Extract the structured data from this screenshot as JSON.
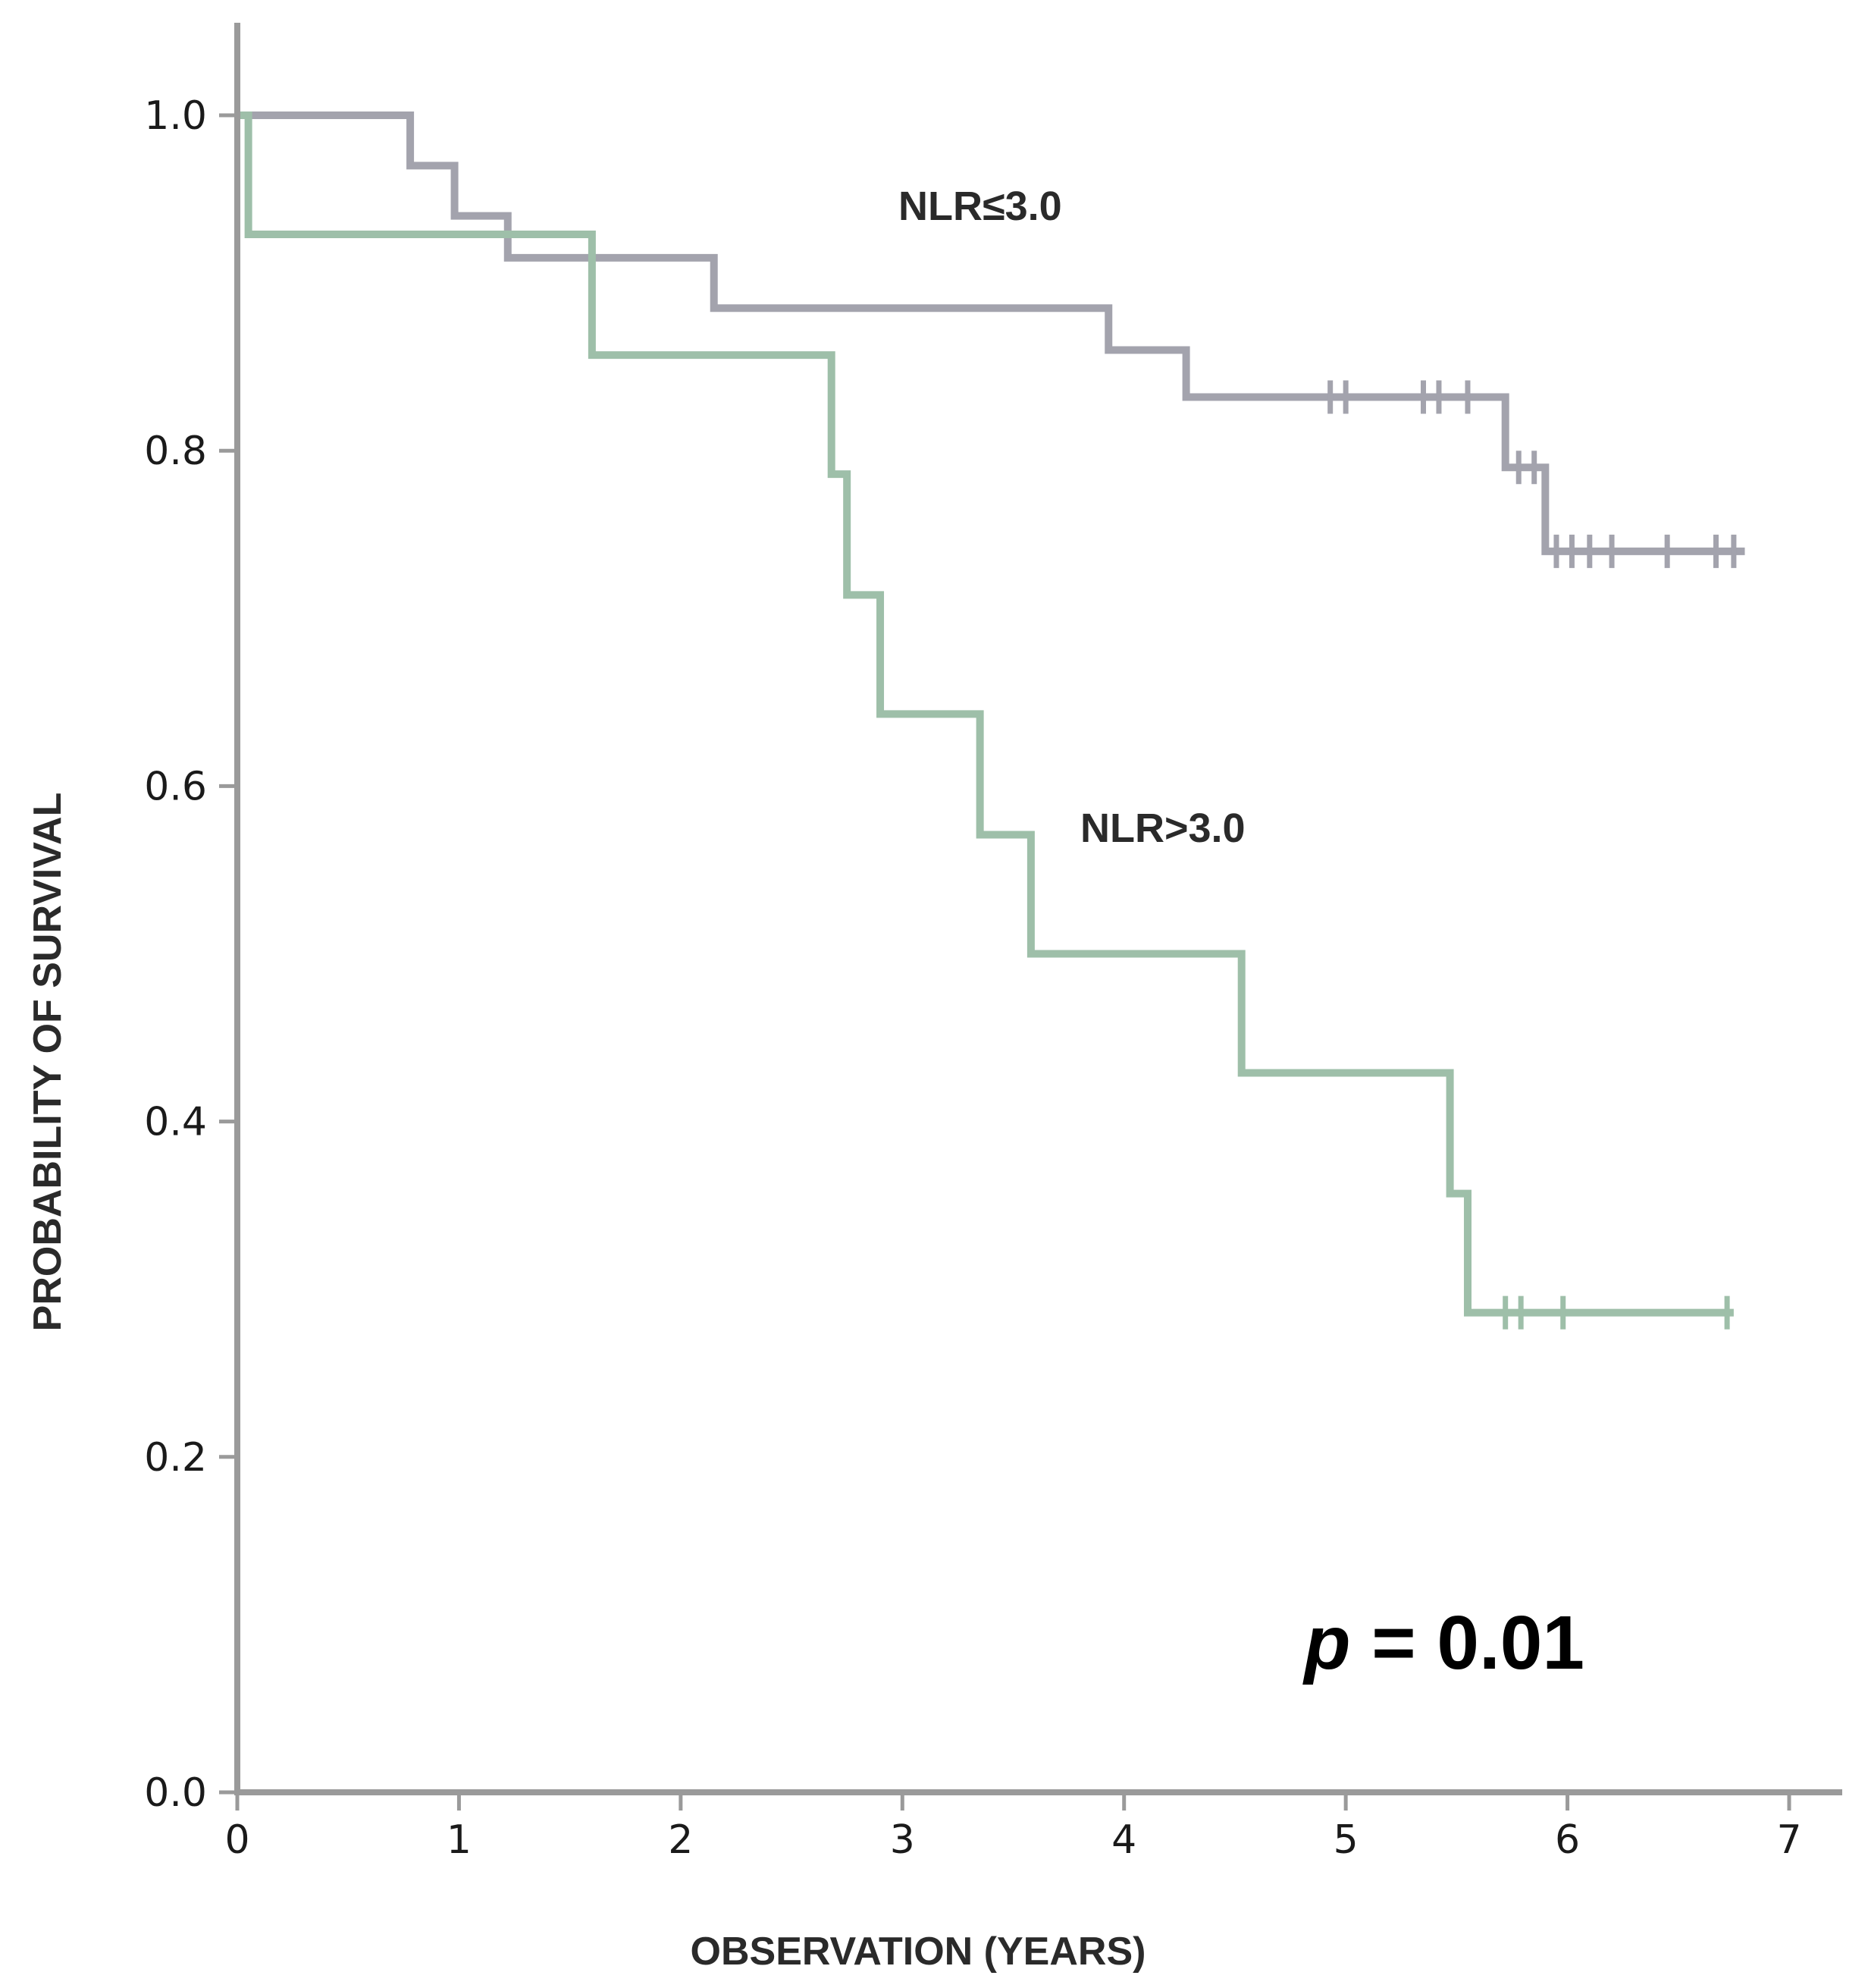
{
  "chart_data": {
    "type": "line",
    "subtype": "kaplan-meier step",
    "title": "",
    "xlabel": "OBSERVATION (YEARS)",
    "ylabel": "PROBABILITY OF SURVIVAL",
    "xlim": [
      0,
      7
    ],
    "ylim": [
      0,
      1.0
    ],
    "x_ticks": [
      "0",
      "1",
      "2",
      "3",
      "4",
      "5",
      "6",
      "7"
    ],
    "y_ticks": [
      "0.0",
      "0.2",
      "0.4",
      "0.6",
      "0.8",
      "1.0"
    ],
    "grid": false,
    "annotation": {
      "prefix": "p",
      "text": " = 0.01"
    },
    "series": [
      {
        "name": "NLR≤3.0",
        "color": "#a3a3ad",
        "steps": [
          [
            0,
            1.0
          ],
          [
            0.78,
            0.97
          ],
          [
            0.98,
            0.94
          ],
          [
            1.22,
            0.915
          ],
          [
            2.15,
            0.885
          ],
          [
            3.93,
            0.86
          ],
          [
            4.28,
            0.832
          ],
          [
            5.72,
            0.79
          ],
          [
            5.9,
            0.74
          ]
        ],
        "x_end": 6.8,
        "censored": [
          [
            4.93,
            0.832
          ],
          [
            5.0,
            0.832
          ],
          [
            5.35,
            0.832
          ],
          [
            5.42,
            0.832
          ],
          [
            5.55,
            0.832
          ],
          [
            5.78,
            0.79
          ],
          [
            5.85,
            0.79
          ],
          [
            5.95,
            0.74
          ],
          [
            6.02,
            0.74
          ],
          [
            6.1,
            0.74
          ],
          [
            6.2,
            0.74
          ],
          [
            6.45,
            0.74
          ],
          [
            6.67,
            0.74
          ],
          [
            6.75,
            0.74
          ]
        ]
      },
      {
        "name": "NLR>3.0",
        "color": "#9ebfa9",
        "steps": [
          [
            0,
            1.0
          ],
          [
            0.05,
            0.929
          ],
          [
            1.6,
            0.857
          ],
          [
            2.68,
            0.786
          ],
          [
            2.75,
            0.714
          ],
          [
            2.9,
            0.643
          ],
          [
            3.35,
            0.571
          ],
          [
            3.58,
            0.5
          ],
          [
            4.53,
            0.429
          ],
          [
            5.47,
            0.357
          ],
          [
            5.55,
            0.286
          ]
        ],
        "x_end": 6.75,
        "censored": [
          [
            5.72,
            0.286
          ],
          [
            5.79,
            0.286
          ],
          [
            5.98,
            0.286
          ],
          [
            6.72,
            0.286
          ]
        ]
      }
    ]
  }
}
